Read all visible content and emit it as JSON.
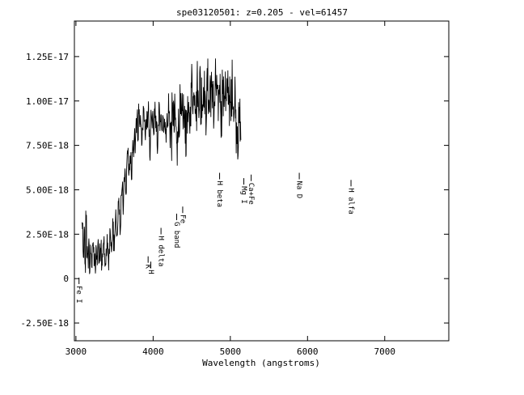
{
  "chart_data": {
    "type": "line",
    "title": "spe03120501: z=0.205 - vel=61457",
    "xlabel": "Wavelength (angstroms)",
    "ylabel": "",
    "xlim": [
      2980,
      7830
    ],
    "ylim": [
      -3.5e-18,
      1.45e-17
    ],
    "grid": false,
    "xticks": [
      3000,
      4000,
      5000,
      6000,
      7000
    ],
    "xtick_labels": [
      "3000",
      "4000",
      "5000",
      "6000",
      "7000"
    ],
    "yticks": [
      -2.5e-18,
      0,
      2.5e-18,
      5e-18,
      7.5e-18,
      1e-17,
      1.25e-17
    ],
    "ytick_labels": [
      "-2.50E-18",
      "0",
      "2.50E-18",
      "5.00E-18",
      "7.50E-18",
      "1.00E-17",
      "1.25E-17"
    ],
    "series": [
      {
        "x_start": 3080,
        "x_step": 12,
        "values": [
          3e-18,
          1e-18,
          2.5e-18,
          5e-19,
          3.5e-18,
          1.5e-18,
          1e-18,
          2e-18,
          5e-19,
          1.5e-18,
          1e-18,
          2e-18,
          1.5e-18,
          1e-18,
          5e-19,
          1.5e-18,
          1.2e-18,
          2e-18,
          1e-18,
          1.5e-18,
          2e-18,
          1e-18,
          1.5e-18,
          2e-18,
          1.2e-18,
          8e-19,
          1.5e-18,
          2e-18,
          1e-18,
          1.5e-18,
          2.5e-18,
          1.5e-18,
          2e-18,
          3e-18,
          2e-18,
          2.5e-18,
          3.5e-18,
          2.5e-18,
          3e-18,
          4e-18,
          3.5e-18,
          3e-18,
          4.5e-18,
          5e-18,
          4e-18,
          5.5e-18,
          6e-18,
          5e-18,
          6.5e-18,
          7e-18,
          6e-18,
          6.5e-18,
          7e-18,
          6e-18,
          7.5e-18,
          7e-18,
          8e-18,
          7.5e-18,
          8.5e-18,
          9e-18,
          8e-18,
          9.5e-18,
          8.5e-18,
          9e-18,
          8e-18,
          8.5e-18,
          9.5e-18,
          9e-18,
          8e-18,
          8.5e-18,
          9e-18,
          9.5e-18,
          8.5e-18,
          7e-18,
          9e-18,
          8.5e-18,
          9e-18,
          8e-18,
          9.5e-18,
          9e-18,
          8.5e-18,
          7e-18,
          9e-18,
          9.5e-18,
          8.5e-18,
          9e-18,
          8e-18,
          9.5e-18,
          8.5e-18,
          9e-18,
          8e-18,
          9e-18,
          8.5e-18,
          9.5e-18,
          9e-18,
          8.5e-18,
          8e-18,
          9e-18,
          9.5e-18,
          8.5e-18,
          9e-18,
          8.5e-18,
          7e-18,
          9e-18,
          8.5e-18,
          9.5e-18,
          9e-18,
          8.5e-18,
          9e-18,
          9.5e-18,
          8.5e-18,
          9e-18,
          8e-18,
          9.5e-18,
          9e-18,
          8.5e-18,
          9e-18,
          1e-17,
          1.1e-17,
          1.05e-17,
          1e-17,
          1.1e-17,
          1.05e-17,
          9.5e-18,
          1.1e-17,
          1e-17,
          1.05e-17,
          1.1e-17,
          9.5e-18,
          1.05e-17,
          1e-17,
          1.1e-17,
          1.05e-17,
          9e-18,
          1e-17,
          1.1e-17,
          1.05e-17,
          9.5e-18,
          1.1e-17,
          1.05e-17,
          1e-17,
          1.1e-17,
          9e-18,
          1e-17,
          1.1e-17,
          1.05e-17,
          9.5e-18,
          1e-17,
          1.1e-17,
          1.05e-17,
          9e-18,
          1.1e-17,
          1e-17,
          1.05e-17,
          1.1e-17,
          9.5e-18,
          1e-17,
          1.1e-17,
          1.05e-17,
          1e-17,
          9e-18,
          1.05e-17,
          1.1e-17,
          1e-17,
          9.5e-18,
          1.05e-17,
          8.5e-18,
          9e-18,
          8e-18,
          8.5e-18,
          9e-18,
          8e-18
        ]
      }
    ],
    "line_markers": [
      {
        "label": "Fe I",
        "x": 3040,
        "y": -4e-19
      },
      {
        "label": "K",
        "x": 3935,
        "y": 8e-19
      },
      {
        "label": "H",
        "x": 3970,
        "y": 5e-19
      },
      {
        "label": "H delta",
        "x": 4102,
        "y": 2.4e-18
      },
      {
        "label": "G band",
        "x": 4305,
        "y": 3.2e-18
      },
      {
        "label": "Fe",
        "x": 4383,
        "y": 3.6e-18
      },
      {
        "label": "H beta",
        "x": 4861,
        "y": 5.5e-18
      },
      {
        "label": "Mg I",
        "x": 5175,
        "y": 5.2e-18
      },
      {
        "label": "Ca+Fe",
        "x": 5270,
        "y": 5.4e-18
      },
      {
        "label": "Na D",
        "x": 5893,
        "y": 5.5e-18
      },
      {
        "label": "H alfa",
        "x": 6563,
        "y": 5.1e-18
      }
    ]
  }
}
